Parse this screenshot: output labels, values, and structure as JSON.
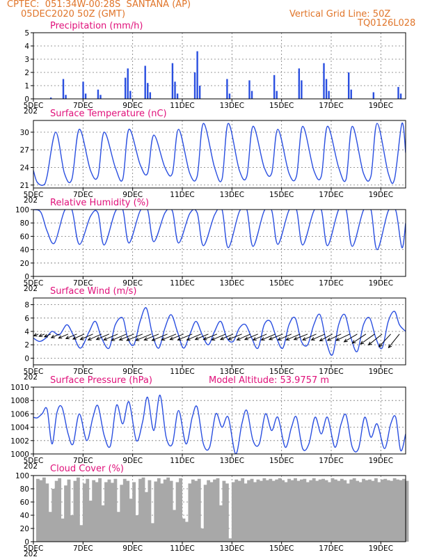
{
  "header": {
    "line1": "CPTEC:  051:34W-00:28S  SANTANA (AP)",
    "line2": "05DEC2020 50Z (GMT)",
    "grid_line": "Vertical Grid Line: 50Z",
    "code": "TQ0126L028"
  },
  "colors": {
    "series": "#2a4fe0",
    "title": "#e0107a",
    "header": "#e0752a",
    "cloud": "#a8a8a8"
  },
  "x_axis": {
    "tick_labels": [
      "5DEC",
      "7DEC",
      "9DEC",
      "11DEC",
      "13DEC",
      "15DEC",
      "17DEC",
      "19DEC"
    ],
    "tick_days": [
      5,
      7,
      9,
      11,
      13,
      15,
      17,
      19
    ],
    "range_days": [
      5,
      20
    ],
    "year_stub": "202"
  },
  "chart_data": [
    {
      "id": "precip",
      "type": "bar",
      "title": "Precipitation (mm/h)",
      "ylim": [
        0,
        5
      ],
      "yticks": [
        0,
        1,
        2,
        3,
        4,
        5
      ],
      "x": [
        5.7,
        6.2,
        6.3,
        7.0,
        7.1,
        7.6,
        7.7,
        8.7,
        8.8,
        8.9,
        9.5,
        9.6,
        9.7,
        10.6,
        10.7,
        10.8,
        11.5,
        11.6,
        11.7,
        12.8,
        12.9,
        13.7,
        13.8,
        14.7,
        14.8,
        15.7,
        15.8,
        16.7,
        16.8,
        16.9,
        17.7,
        17.8,
        18.7,
        19.7,
        19.8
      ],
      "values": [
        0.1,
        1.5,
        0.3,
        1.3,
        0.4,
        0.7,
        0.3,
        1.6,
        2.3,
        0.6,
        2.5,
        1.2,
        0.5,
        2.7,
        1.3,
        0.4,
        2.0,
        3.6,
        1.0,
        1.5,
        0.4,
        1.4,
        0.6,
        1.8,
        0.6,
        2.3,
        1.4,
        2.7,
        1.5,
        0.6,
        2.0,
        0.7,
        0.5,
        0.9,
        0.4
      ]
    },
    {
      "id": "temp",
      "type": "line",
      "title": "Surface Temperature (nC)",
      "ylim": [
        20.5,
        32
      ],
      "yticks": [
        21,
        24,
        27,
        30
      ],
      "x": [
        5.0,
        5.15,
        5.4,
        5.55,
        5.9,
        6.25,
        6.55,
        6.85,
        7.3,
        7.6,
        7.85,
        8.3,
        8.6,
        8.85,
        9.3,
        9.6,
        9.85,
        10.3,
        10.6,
        10.85,
        11.3,
        11.6,
        11.85,
        12.3,
        12.6,
        12.85,
        13.3,
        13.6,
        13.85,
        14.3,
        14.6,
        14.85,
        15.3,
        15.6,
        15.85,
        16.3,
        16.6,
        16.85,
        17.3,
        17.6,
        17.85,
        18.3,
        18.6,
        18.85,
        19.3,
        19.55,
        19.85,
        20.0
      ],
      "values": [
        23.5,
        21.5,
        21.0,
        22.5,
        30.0,
        23.0,
        22.0,
        30.5,
        23.5,
        22.5,
        30.0,
        24.0,
        22.0,
        30.5,
        24.5,
        23.0,
        29.5,
        24.0,
        23.0,
        30.5,
        23.0,
        22.5,
        31.5,
        24.0,
        22.0,
        31.5,
        23.5,
        22.5,
        31.0,
        24.0,
        23.0,
        30.5,
        23.0,
        22.5,
        31.0,
        23.5,
        22.5,
        31.0,
        24.0,
        22.0,
        31.0,
        23.0,
        22.5,
        31.5,
        23.0,
        22.0,
        31.5,
        26.5
      ]
    },
    {
      "id": "rh",
      "type": "line",
      "title": "Relative Humidity (%)",
      "ylim": [
        0,
        100
      ],
      "yticks": [
        0,
        20,
        40,
        60,
        80,
        100
      ],
      "x": [
        5.0,
        5.3,
        5.55,
        5.85,
        6.25,
        6.55,
        6.85,
        7.3,
        7.6,
        7.85,
        8.3,
        8.6,
        8.85,
        9.3,
        9.6,
        9.85,
        10.3,
        10.6,
        10.85,
        11.3,
        11.6,
        11.85,
        12.3,
        12.6,
        12.85,
        13.3,
        13.6,
        13.85,
        14.3,
        14.6,
        14.85,
        15.3,
        15.6,
        15.85,
        16.3,
        16.6,
        16.85,
        17.3,
        17.6,
        17.85,
        18.3,
        18.6,
        18.85,
        19.3,
        19.6,
        19.85,
        20.0
      ],
      "values": [
        100,
        96,
        68,
        50,
        98,
        100,
        48,
        90,
        95,
        47,
        97,
        100,
        50,
        98,
        100,
        52,
        95,
        98,
        50,
        94,
        95,
        46,
        92,
        100,
        43,
        97,
        100,
        45,
        98,
        99,
        48,
        99,
        100,
        47,
        98,
        100,
        46,
        100,
        100,
        45,
        99,
        100,
        40,
        98,
        99,
        43,
        80
      ]
    },
    {
      "id": "wind",
      "type": "line",
      "title": "Surface Wind (m/s)",
      "ylim": [
        -1,
        9
      ],
      "yticks": [
        0,
        2,
        4,
        6,
        8
      ],
      "x": [
        5.0,
        5.25,
        5.5,
        5.75,
        6.05,
        6.35,
        6.6,
        6.9,
        7.25,
        7.5,
        7.75,
        8.05,
        8.3,
        8.6,
        8.8,
        9.05,
        9.3,
        9.55,
        9.8,
        10.05,
        10.3,
        10.55,
        10.8,
        11.05,
        11.3,
        11.55,
        11.8,
        12.05,
        12.3,
        12.55,
        12.8,
        13.05,
        13.3,
        13.55,
        13.8,
        14.05,
        14.3,
        14.55,
        14.8,
        15.05,
        15.3,
        15.55,
        15.8,
        16.05,
        16.3,
        16.55,
        16.8,
        17.05,
        17.3,
        17.55,
        17.8,
        18.05,
        18.3,
        18.55,
        18.8,
        19.05,
        19.3,
        19.55,
        19.75,
        20.0
      ],
      "values": [
        3.0,
        2.5,
        3.0,
        4.0,
        3.5,
        5.0,
        3.5,
        1.5,
        4.0,
        5.5,
        3.0,
        1.5,
        5.0,
        6.0,
        3.0,
        2.0,
        5.5,
        7.5,
        3.5,
        1.5,
        4.5,
        6.5,
        4.0,
        1.5,
        3.5,
        5.5,
        3.5,
        2.0,
        4.0,
        5.5,
        3.0,
        2.5,
        4.5,
        5.0,
        3.0,
        1.5,
        5.0,
        5.5,
        3.0,
        1.5,
        5.0,
        6.0,
        2.5,
        2.0,
        5.0,
        6.5,
        2.5,
        0.5,
        5.0,
        6.5,
        3.0,
        1.0,
        5.0,
        6.0,
        3.0,
        1.5,
        5.5,
        7.0,
        5.0,
        4.0
      ],
      "vector_x": [
        5.2,
        5.45,
        5.7,
        6.05,
        6.4,
        6.75,
        7.05,
        7.4,
        7.75,
        8.05,
        8.4,
        8.75,
        9.05,
        9.4,
        9.75,
        10.05,
        10.4,
        10.75,
        11.05,
        11.4,
        11.75,
        12.05,
        12.4,
        12.75,
        13.05,
        13.4,
        13.75,
        14.05,
        14.4,
        14.75,
        15.05,
        15.4,
        15.75,
        16.05,
        16.4,
        16.75,
        17.05,
        17.4,
        17.75,
        18.05,
        18.4,
        18.75,
        19.05,
        19.4,
        19.75
      ],
      "vector_u": [
        -1.0,
        -1.2,
        -1.4,
        -1.8,
        -2.1,
        -2.4,
        -2.5,
        -2.8,
        -3.0,
        -2.8,
        -3.1,
        -3.3,
        -3.2,
        -3.5,
        -3.4,
        -3.2,
        -3.4,
        -3.2,
        -3.0,
        -3.2,
        -3.1,
        -2.9,
        -3.0,
        -3.1,
        -2.8,
        -3.0,
        -3.0,
        -2.9,
        -3.0,
        -3.1,
        -3.0,
        -3.0,
        -3.1,
        -3.0,
        -3.0,
        -3.0,
        -2.8,
        -3.0,
        -3.0,
        -2.9,
        -3.0,
        -3.1,
        -3.0,
        -2.6,
        -2.4
      ],
      "vector_v": [
        -0.4,
        -0.5,
        -0.6,
        -0.8,
        -0.9,
        -1.0,
        -1.1,
        -1.2,
        -1.3,
        -1.2,
        -1.3,
        -1.4,
        -1.3,
        -1.4,
        -1.4,
        -1.3,
        -1.4,
        -1.3,
        -1.2,
        -1.3,
        -1.3,
        -1.2,
        -1.2,
        -1.3,
        -1.2,
        -1.2,
        -1.3,
        -1.2,
        -1.3,
        -1.3,
        -1.2,
        -1.3,
        -1.3,
        -1.2,
        -1.3,
        -1.3,
        -1.5,
        -1.4,
        -1.4,
        -1.7,
        -2.0,
        -2.2,
        -2.4,
        -2.8,
        -3.0
      ]
    },
    {
      "id": "pressure",
      "type": "line",
      "title": "Surface Pressure (hPa)",
      "annotation": "Model Altitude: 53.9757 m",
      "ylim": [
        1000,
        1010
      ],
      "yticks": [
        1000,
        1002,
        1004,
        1006,
        1008,
        1010
      ],
      "x": [
        5.0,
        5.15,
        5.35,
        5.55,
        5.75,
        5.95,
        6.15,
        6.4,
        6.6,
        6.85,
        7.15,
        7.4,
        7.6,
        7.85,
        8.1,
        8.35,
        8.6,
        8.85,
        9.15,
        9.4,
        9.6,
        9.85,
        10.1,
        10.35,
        10.6,
        10.85,
        11.15,
        11.4,
        11.6,
        11.85,
        12.1,
        12.35,
        12.6,
        12.85,
        13.15,
        13.4,
        13.6,
        13.85,
        14.1,
        14.35,
        14.6,
        14.85,
        15.15,
        15.4,
        15.6,
        15.85,
        16.1,
        16.35,
        16.6,
        16.85,
        17.15,
        17.4,
        17.6,
        17.85,
        18.1,
        18.35,
        18.6,
        18.85,
        19.15,
        19.4,
        19.6,
        19.8,
        20.0
      ],
      "values": [
        1005.5,
        1005.4,
        1006.0,
        1006.7,
        1001.5,
        1006.2,
        1007.0,
        1003.0,
        1001.5,
        1006.0,
        1002.0,
        1005.5,
        1007.2,
        1002.8,
        1001.2,
        1007.3,
        1004.5,
        1007.8,
        1002.0,
        1004.8,
        1008.5,
        1003.5,
        1008.8,
        1002.5,
        1001.5,
        1006.5,
        1001.5,
        1005.5,
        1007.0,
        1001.5,
        1001.0,
        1006.0,
        1004.0,
        1005.5,
        1000.0,
        1004.5,
        1006.5,
        1002.0,
        1001.5,
        1006.0,
        1003.5,
        1005.5,
        1001.0,
        1004.0,
        1005.5,
        1000.8,
        1001.5,
        1005.5,
        1003.0,
        1005.5,
        1001.0,
        1004.5,
        1005.8,
        1001.0,
        1000.8,
        1005.5,
        1002.5,
        1004.5,
        1000.8,
        1004.5,
        1005.5,
        1000.5,
        1003.0
      ]
    },
    {
      "id": "cloud",
      "type": "bar",
      "title": "Cloud Cover (%)",
      "ylim": [
        0,
        100
      ],
      "yticks": [
        0,
        20,
        40,
        60,
        80,
        100
      ],
      "x": [
        5.0,
        5.125,
        5.25,
        5.375,
        5.5,
        5.625,
        5.75,
        5.875,
        6.0,
        6.125,
        6.25,
        6.375,
        6.5,
        6.625,
        6.75,
        6.875,
        7.0,
        7.125,
        7.25,
        7.375,
        7.5,
        7.625,
        7.75,
        7.875,
        8.0,
        8.125,
        8.25,
        8.375,
        8.5,
        8.625,
        8.75,
        8.875,
        9.0,
        9.125,
        9.25,
        9.375,
        9.5,
        9.625,
        9.75,
        9.875,
        10.0,
        10.125,
        10.25,
        10.375,
        10.5,
        10.625,
        10.75,
        10.875,
        11.0,
        11.125,
        11.25,
        11.375,
        11.5,
        11.625,
        11.75,
        11.875,
        12.0,
        12.125,
        12.25,
        12.375,
        12.5,
        12.625,
        12.75,
        12.875,
        13.0,
        13.125,
        13.25,
        13.375,
        13.5,
        13.625,
        13.75,
        13.875,
        14.0,
        14.125,
        14.25,
        14.375,
        14.5,
        14.625,
        14.75,
        14.875,
        15.0,
        15.125,
        15.25,
        15.375,
        15.5,
        15.625,
        15.75,
        15.875,
        16.0,
        16.125,
        16.25,
        16.375,
        16.5,
        16.625,
        16.75,
        16.875,
        17.0,
        17.125,
        17.25,
        17.375,
        17.5,
        17.625,
        17.75,
        17.875,
        18.0,
        18.125,
        18.25,
        18.375,
        18.5,
        18.625,
        18.75,
        18.875,
        19.0,
        19.125,
        19.25,
        19.375,
        19.5,
        19.625,
        19.75,
        19.875
      ],
      "values": [
        95,
        93,
        97,
        88,
        45,
        80,
        92,
        96,
        35,
        85,
        94,
        40,
        92,
        97,
        25,
        88,
        95,
        62,
        93,
        90,
        96,
        55,
        90,
        94,
        89,
        95,
        45,
        86,
        95,
        92,
        65,
        90,
        40,
        95,
        97,
        75,
        93,
        28,
        91,
        96,
        88,
        94,
        97,
        92,
        48,
        90,
        96,
        35,
        30,
        88,
        94,
        92,
        95,
        20,
        86,
        93,
        90,
        94,
        96,
        55,
        92,
        88,
        5,
        90,
        94,
        92,
        96,
        88,
        93,
        95,
        90,
        94,
        92,
        96,
        93,
        95,
        92,
        94,
        96,
        93,
        90,
        95,
        93,
        96,
        92,
        94,
        95,
        90,
        93,
        96,
        92,
        94,
        95,
        93,
        90,
        96,
        94,
        92,
        95,
        93,
        88,
        94,
        96,
        92,
        90,
        95,
        93,
        94,
        92,
        96,
        90,
        94,
        95,
        93,
        92,
        96,
        94,
        93,
        95,
        92
      ]
    }
  ]
}
